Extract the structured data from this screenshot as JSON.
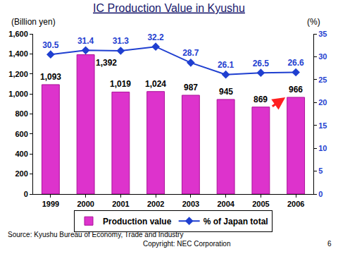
{
  "chart_data": {
    "type": "bar",
    "title": "IC Production Value in Kyushu",
    "ylabel": "(Billion yen)",
    "y2label": "(%)",
    "categories": [
      "1999",
      "2000",
      "2001",
      "2002",
      "2003",
      "2004",
      "2005",
      "2006"
    ],
    "series": [
      {
        "name": "Production value",
        "type": "bar",
        "color": "#dd33cc",
        "values": [
          1093,
          1392,
          1019,
          1024,
          987,
          945,
          869,
          966
        ],
        "value_labels": [
          "1,093",
          "1,392",
          "1,019",
          "1,024",
          "987",
          "945",
          "869",
          "966"
        ]
      },
      {
        "name": "% of Japan total",
        "type": "line",
        "axis": "y2",
        "color": "#1f3fd0",
        "marker": "diamond",
        "values": [
          30.5,
          31.4,
          31.3,
          32.2,
          28.7,
          26.1,
          26.5,
          26.6
        ]
      }
    ],
    "ylim": [
      0,
      1600
    ],
    "yticks": [
      0,
      200,
      400,
      600,
      800,
      {
        "value": 1000,
        "label": "1,000"
      },
      {
        "value": 1200,
        "label": "1,200"
      },
      {
        "value": 1400,
        "label": "1,400"
      },
      {
        "value": 1600,
        "label": "1,600"
      }
    ],
    "y2lim": [
      0,
      35
    ],
    "y2ticks": [
      0,
      5,
      10,
      15,
      20,
      25,
      30,
      35
    ],
    "grid": false,
    "legend": "bottom",
    "data_labels": true,
    "annotations": [
      "Source: Kyushu Bureau of Economy, Trade and Industry",
      "Copyright: NEC Corporation",
      "6"
    ]
  }
}
